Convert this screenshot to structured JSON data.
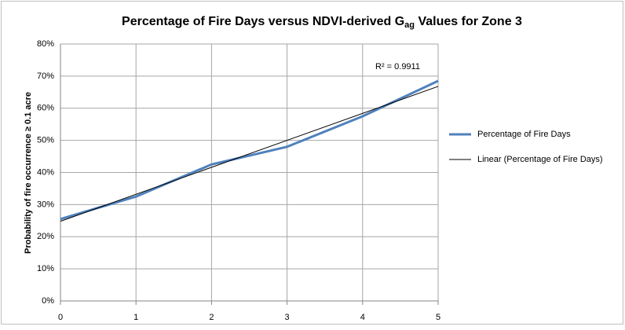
{
  "chart_data": {
    "type": "line",
    "title": "Percentage of Fire Days versus NDVI-derived G",
    "title_subscript": "ag",
    "title_end": " Values for Zone 3",
    "y_label": "Probability of fire occurrence ≥ 0.1 acre",
    "annotation": "R² = 0.9911",
    "x": [
      0,
      1,
      2,
      3,
      4,
      5
    ],
    "series": [
      {
        "name": "Percentage of Fire Days",
        "color": "#4f81bd",
        "values": [
          25.5,
          32.5,
          42.5,
          48,
          57.5,
          68.5
        ]
      },
      {
        "name": "Linear (Percentage of Fire Days)",
        "color": "#000000",
        "x": [
          0,
          5
        ],
        "values": [
          24.8,
          66.8
        ]
      }
    ],
    "xlim": [
      0,
      5
    ],
    "xticks": [
      0,
      1,
      2,
      3,
      4,
      5
    ],
    "ylim": [
      0,
      80
    ],
    "yticks": [
      {
        "value": 0,
        "label": "0%"
      },
      {
        "value": 10,
        "label": "10%"
      },
      {
        "value": 20,
        "label": "20%"
      },
      {
        "value": 30,
        "label": "30%"
      },
      {
        "value": 40,
        "label": "40%"
      },
      {
        "value": 50,
        "label": "50%"
      },
      {
        "value": 60,
        "label": "60%"
      },
      {
        "value": 70,
        "label": "70%"
      },
      {
        "value": 80,
        "label": "80%"
      }
    ],
    "grid": true,
    "legend": "right"
  }
}
